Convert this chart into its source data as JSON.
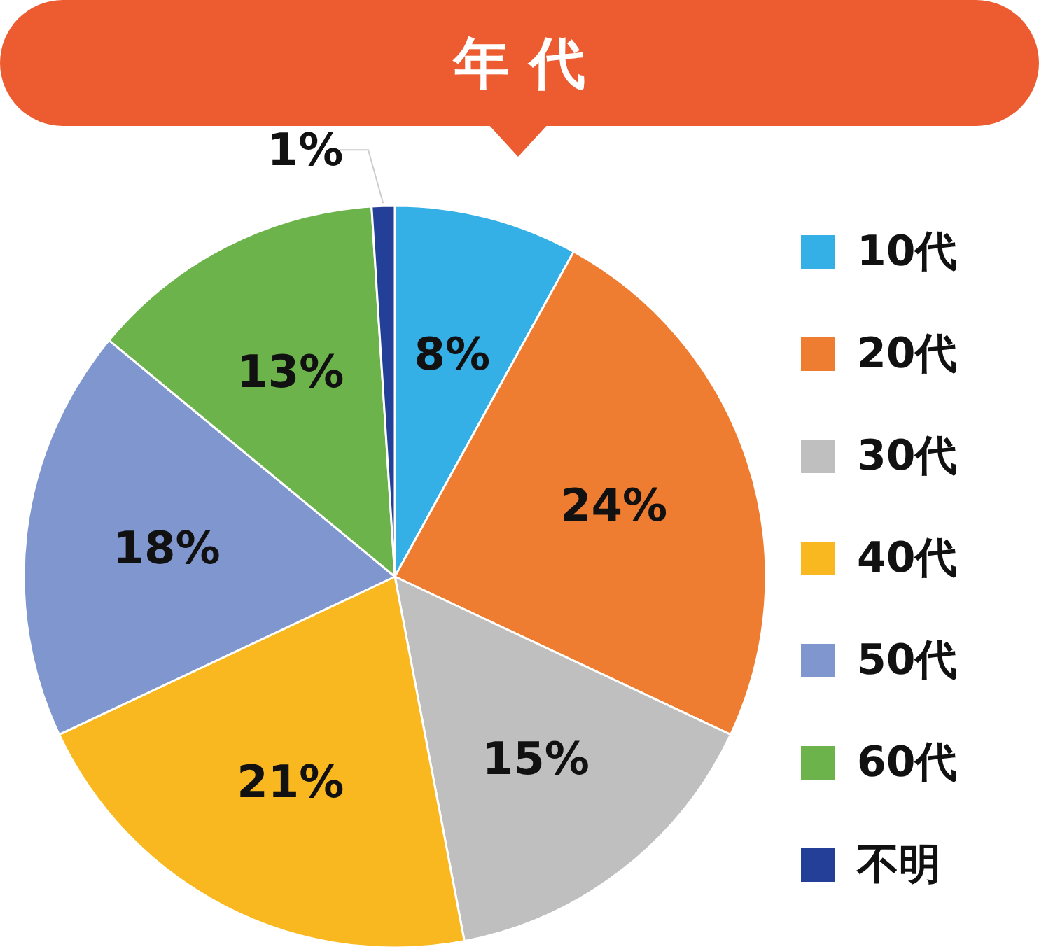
{
  "chart_data": {
    "type": "pie",
    "title": "年 代",
    "categories": [
      "10代",
      "20代",
      "30代",
      "40代",
      "50代",
      "60代",
      "不明"
    ],
    "values": [
      8,
      24,
      15,
      21,
      18,
      13,
      1
    ],
    "colors": [
      "#35b0e6",
      "#ee7d31",
      "#bfbfbf",
      "#f9b81f",
      "#7f96cf",
      "#6db34b",
      "#233f97"
    ],
    "value_labels": [
      "8%",
      "24%",
      "15%",
      "21%",
      "18%",
      "13%",
      "1%"
    ],
    "legend": "right"
  }
}
